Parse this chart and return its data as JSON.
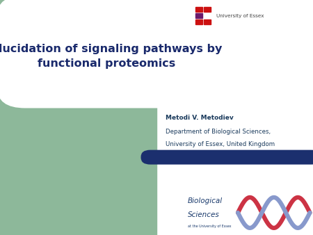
{
  "bg_color": "#ffffff",
  "left_panel_color": "#8db89a",
  "title_line1": "Elucidation of signaling pathways by",
  "title_line2": "functional proteomics",
  "title_color": "#1a2a6c",
  "author_name": "Metodi V. Metodiev",
  "author_affil1": "Department of Biological Sciences,",
  "author_affil2": "University of Essex, United Kingdom",
  "author_color": "#1a3a5c",
  "blue_bar_color": "#1b2f6e",
  "univ_text": "University of Essex",
  "univ_logo_red": "#cc1111",
  "univ_logo_purple": "#6b1a6b",
  "fig_width": 4.5,
  "fig_height": 3.38,
  "dpi": 100
}
